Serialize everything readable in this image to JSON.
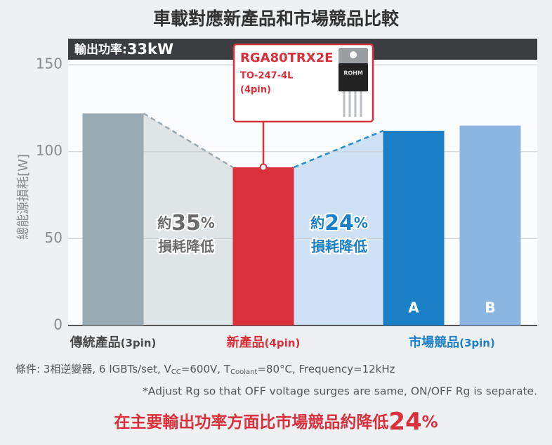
{
  "chart_data": {
    "type": "bar",
    "title": "車載對應新產品和市場競品比較",
    "y_label": "總能源損耗[W]",
    "categories": [
      null,
      null,
      "A",
      "B"
    ],
    "values": [
      122,
      91,
      112,
      115
    ],
    "colors": [
      "#9aaab2",
      "#d9303c",
      "#1a7fc6",
      "#8cb6e2"
    ],
    "groups": [
      {
        "name": "傳統產品",
        "pins": "(3pin)",
        "count": 1,
        "color": "#4a4a4a"
      },
      {
        "name": "新產品",
        "pins": "(4pin)",
        "count": 1,
        "color": "#d9303c"
      },
      {
        "name": "市場競品",
        "pins": "(3pin)",
        "count": 2,
        "color": "#1a7fc6"
      }
    ],
    "ylim": [
      0,
      165
    ],
    "yticks": [
      0,
      50,
      100,
      150
    ],
    "grid": true,
    "banner": {
      "label": "輸出功率:",
      "value": "33kW"
    },
    "callout": {
      "part": "RGA80TRX2E",
      "package": "TO-247-4L",
      "pins": "(4pin)",
      "chip": "ROHM"
    },
    "reductions": [
      {
        "prefix": "約",
        "value": "35",
        "unit": "%",
        "text": "損耗降低"
      },
      {
        "prefix": "約",
        "value": "24",
        "unit": "%",
        "text": "損耗降低"
      }
    ],
    "conditions": [
      {
        "text": "條件: 3相逆變器, 6 IGBTs/set, V"
      },
      {
        "text": "CC",
        "sub": true
      },
      {
        "text": "=600V, T"
      },
      {
        "text": "Coolant",
        "sub": true
      },
      {
        "text": "=80°C, Frequency=12kHz"
      }
    ],
    "note": "*Adjust Rg so that OFF voltage surges are same, ON/OFF Rg is separate.",
    "conclusion": {
      "text": "在主要輸出功率方面比市場競品約降低",
      "value": "24",
      "unit": "%"
    }
  }
}
